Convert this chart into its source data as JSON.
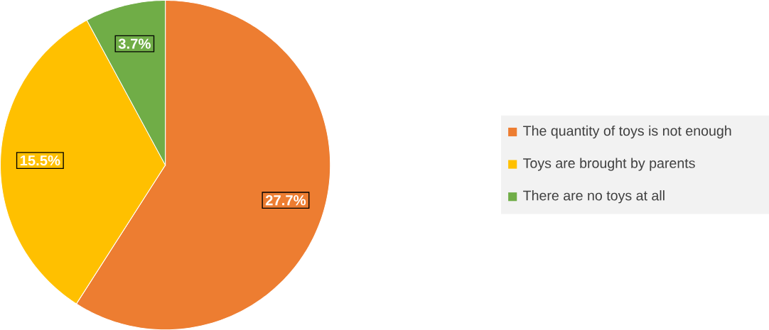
{
  "chart_data": {
    "type": "pie",
    "categories": [
      "The quantity of toys is not enough",
      "Toys are brought by parents",
      "There are no toys at all"
    ],
    "values": [
      27.7,
      15.5,
      3.7
    ],
    "colors": [
      "#ed7d31",
      "#ffc000",
      "#70ad47"
    ],
    "value_labels": [
      "27.7%",
      "15.5%",
      "3.7%"
    ],
    "legend": "right"
  }
}
